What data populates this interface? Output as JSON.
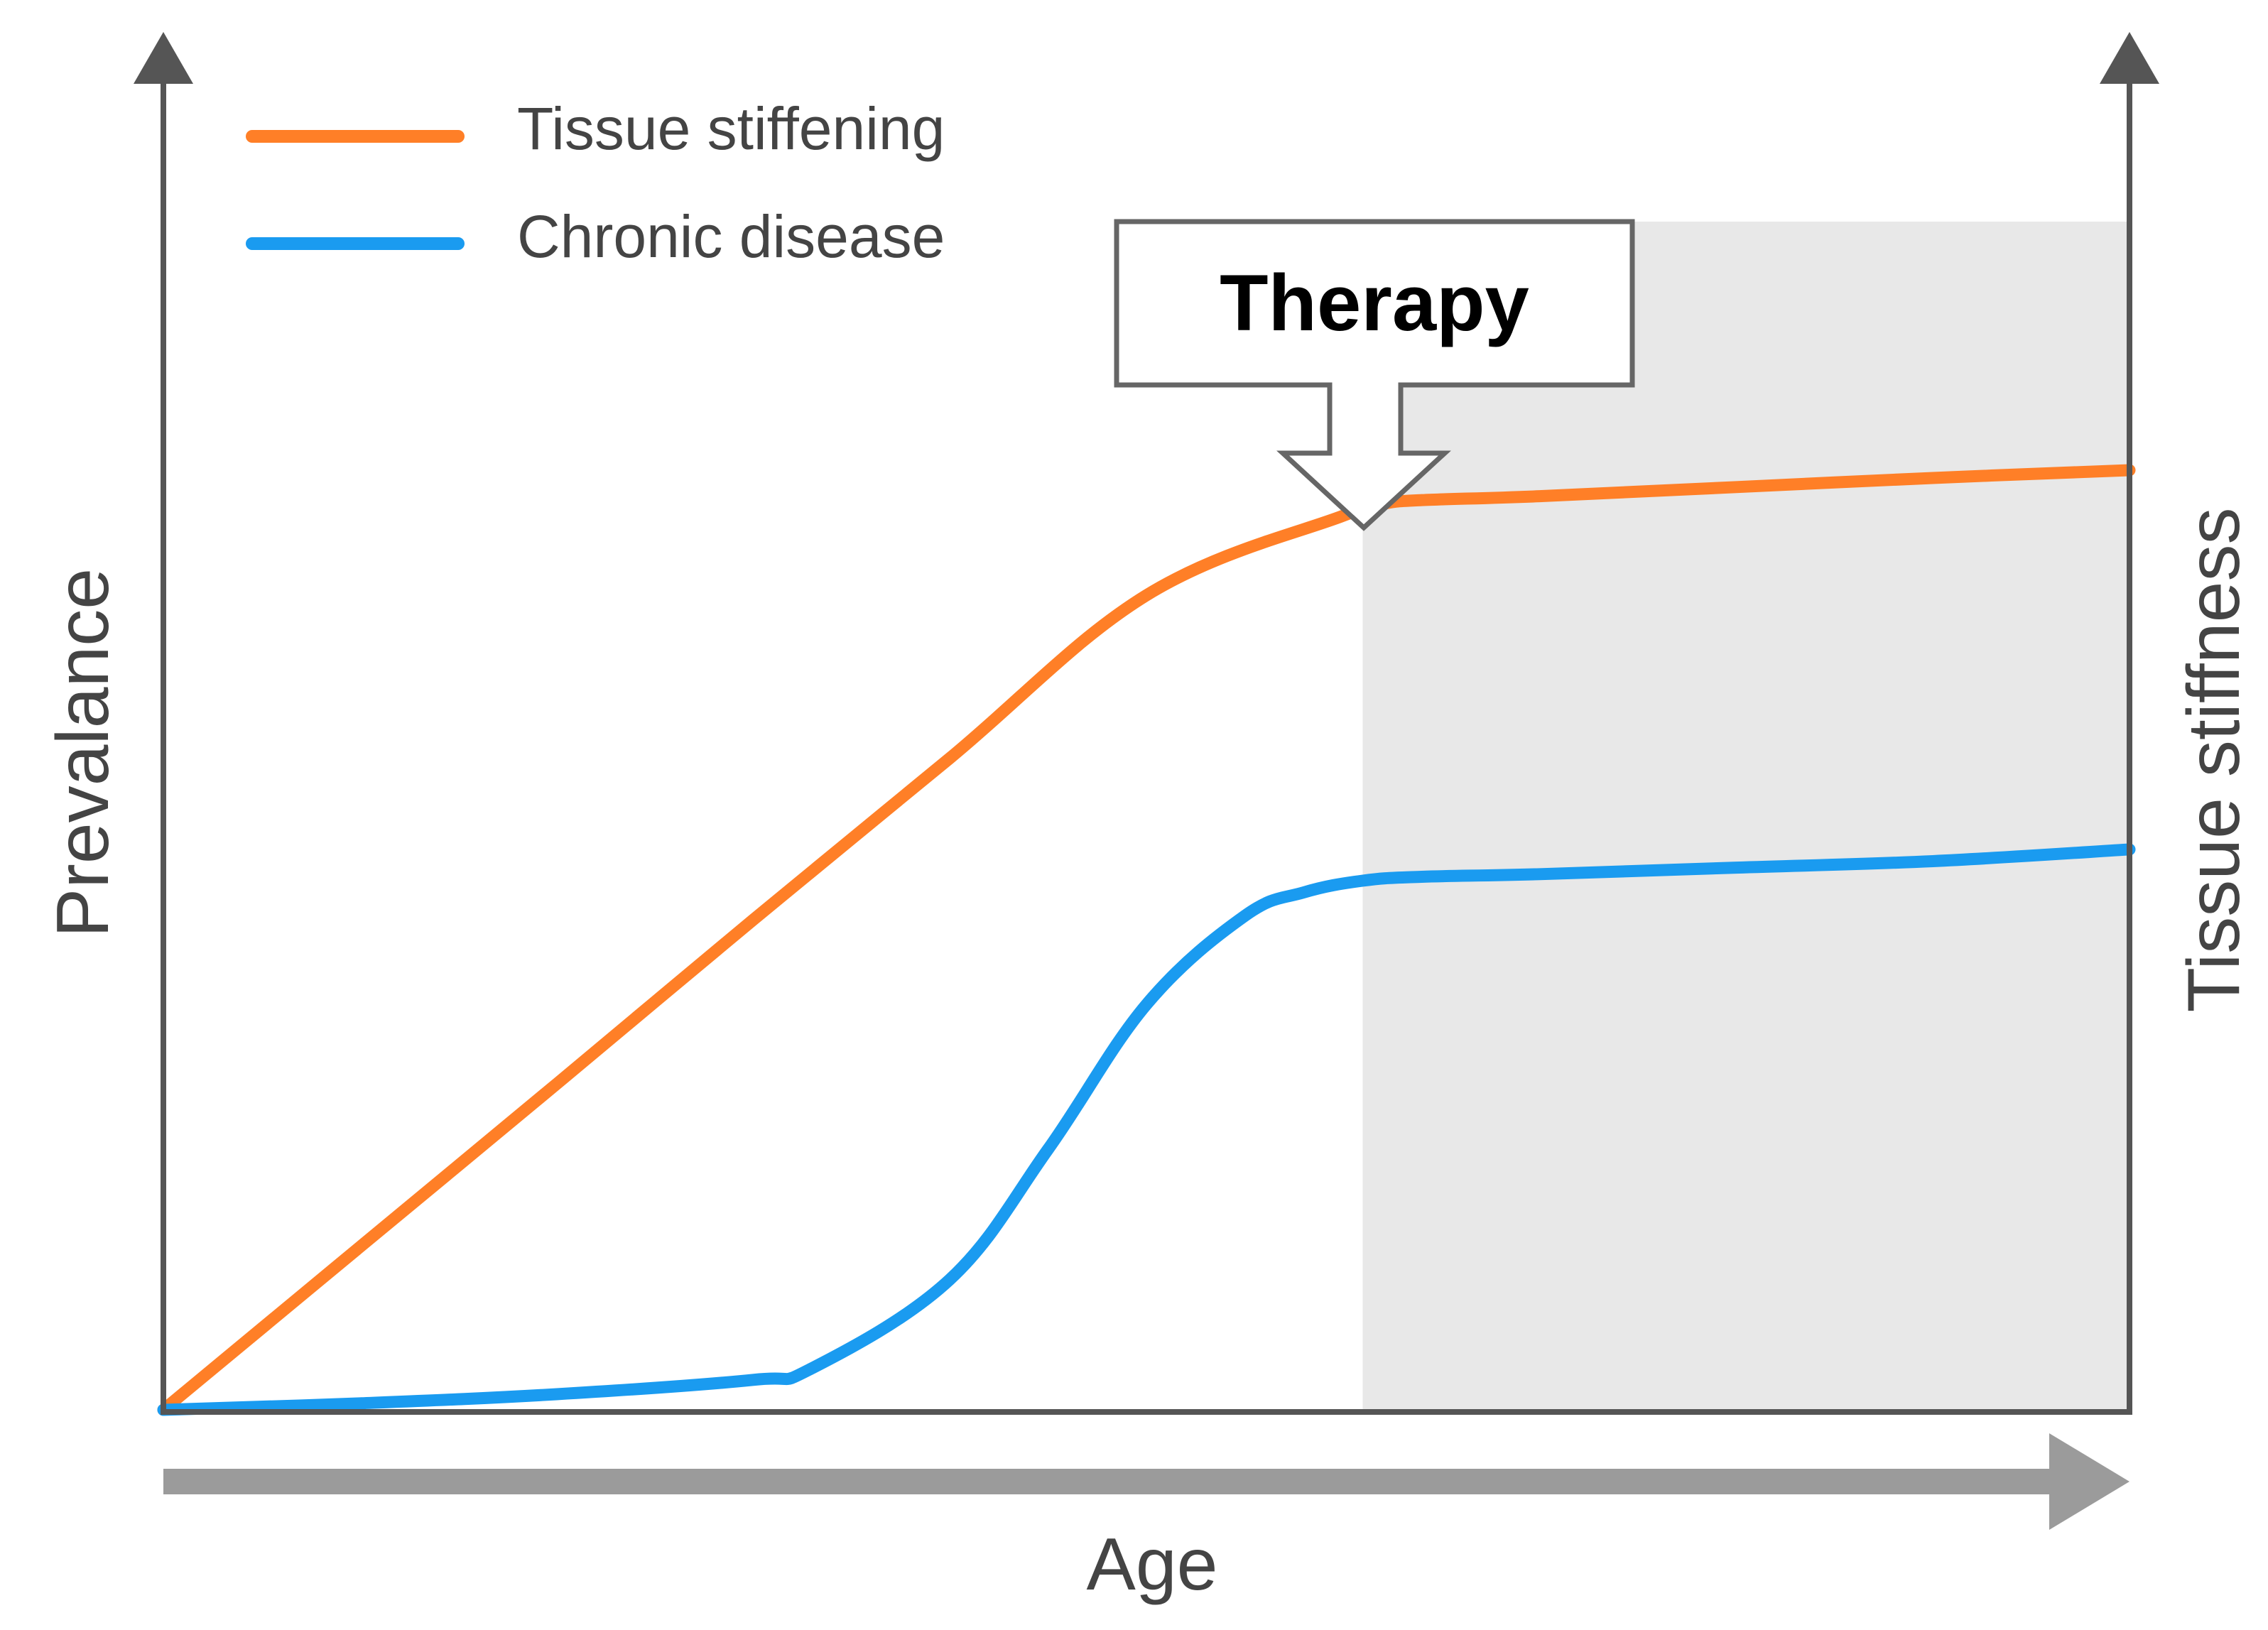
{
  "chart_data": {
    "type": "line",
    "title": "",
    "xlabel": "Age",
    "ylabel_left": "Prevalance",
    "ylabel_right": "Tissue stiffness",
    "xlim": [
      0,
      100
    ],
    "ylim": [
      0,
      100
    ],
    "grid": false,
    "legend_position": "top-left",
    "series": [
      {
        "name": "Tissue stiffening",
        "color": "#FF7F27",
        "x": [
          0,
          10,
          20,
          30,
          40,
          50,
          60,
          62,
          64,
          70,
          80,
          90,
          100
        ],
        "y": [
          0,
          12.5,
          25,
          37.6,
          50,
          62.5,
          68.6,
          69.5,
          69.8,
          70.1,
          70.8,
          71.5,
          72.1
        ]
      },
      {
        "name": "Chronic disease",
        "color": "#1A9BF0",
        "x": [
          0,
          10,
          20,
          30,
          33,
          40,
          45,
          50,
          55,
          58,
          61,
          64,
          70,
          80,
          90,
          100
        ],
        "y": [
          0,
          0.5,
          1.2,
          2.3,
          3.2,
          10,
          20,
          31.1,
          37.9,
          39.7,
          40.6,
          40.9,
          41.1,
          41.6,
          42.1,
          43
        ]
      }
    ],
    "shaded_region": {
      "x_start": 61,
      "x_end": 100,
      "color": "#E8E8E8"
    },
    "annotations": [
      {
        "text": "Therapy",
        "type": "down-arrow-callout",
        "x": 61
      }
    ]
  }
}
